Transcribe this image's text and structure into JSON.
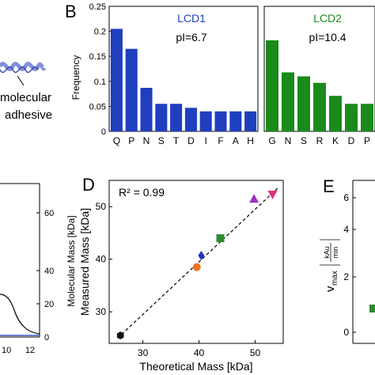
{
  "panel_labels": {
    "b": "B",
    "d": "D",
    "e": "E"
  },
  "fragment_a": {
    "line1": "molecular",
    "line2": "adhesive"
  },
  "fragment_c": {
    "ylabel": "Molecular Mass [kDa]",
    "yticks": [
      "0",
      "20",
      "40",
      "60"
    ],
    "xticks": [
      "10",
      "12"
    ]
  },
  "fragment_e": {
    "ylabel_main": "v",
    "ylabel_sub": "max",
    "unit_num": "kAu",
    "unit_den": "min",
    "yticks": [
      "0",
      "2",
      "4",
      "6"
    ]
  },
  "colors": {
    "lcd1": "#1f3fbf",
    "lcd2": "#1a8a1a",
    "fit_line": "#000000",
    "trace_blue": "#3a4ec8",
    "marker_black": "#111111",
    "marker_orange": "#f07020",
    "marker_blue": "#2233cc",
    "marker_green": "#2e8b2e",
    "marker_purple": "#9b30c0",
    "marker_pink": "#e0307a"
  },
  "chart_data": [
    {
      "type": "bar",
      "panel": "B-left",
      "title": "LCD1",
      "annotation": "pI=6.7",
      "ylabel": "Frequency",
      "ylim": [
        0,
        0.25
      ],
      "yticks": [
        "0",
        "0.05",
        "0.1",
        "0.15",
        "0.2",
        "0.25"
      ],
      "categories": [
        "Q",
        "P",
        "N",
        "S",
        "T",
        "D",
        "I",
        "F",
        "A",
        "H"
      ],
      "values": [
        0.205,
        0.165,
        0.087,
        0.055,
        0.055,
        0.047,
        0.04,
        0.04,
        0.04,
        0.04
      ]
    },
    {
      "type": "bar",
      "panel": "B-right",
      "title": "LCD2",
      "annotation": "pI=10.4",
      "ylim": [
        0,
        0.25
      ],
      "categories": [
        "G",
        "N",
        "S",
        "R",
        "K",
        "D",
        "P"
      ],
      "values": [
        0.182,
        0.118,
        0.11,
        0.097,
        0.071,
        0.055,
        0.055
      ]
    },
    {
      "type": "scatter",
      "panel": "D",
      "annotation": "R² = 0.99",
      "xlabel": "Theoretical Mass [kDa]",
      "ylabel": "Measured Mass [kDa]",
      "xlim": [
        24,
        55
      ],
      "ylim": [
        24,
        55
      ],
      "xticks": [
        "30",
        "40",
        "50"
      ],
      "yticks": [
        "30",
        "40",
        "50"
      ],
      "points": [
        {
          "x": 26.0,
          "y": 25.5,
          "marker": "hexagon",
          "color": "#111111"
        },
        {
          "x": 39.6,
          "y": 38.5,
          "marker": "circle",
          "color": "#f07020"
        },
        {
          "x": 40.4,
          "y": 40.7,
          "marker": "diamond",
          "color": "#2233cc"
        },
        {
          "x": 43.8,
          "y": 44.0,
          "marker": "square",
          "color": "#2e8b2e"
        },
        {
          "x": 49.8,
          "y": 51.5,
          "marker": "triangle-up",
          "color": "#9b30c0"
        },
        {
          "x": 53.1,
          "y": 52.3,
          "marker": "triangle-down",
          "color": "#e0307a"
        }
      ],
      "fit": {
        "x": [
          25.5,
          54.0
        ],
        "y": [
          25.0,
          53.5
        ]
      }
    }
  ]
}
